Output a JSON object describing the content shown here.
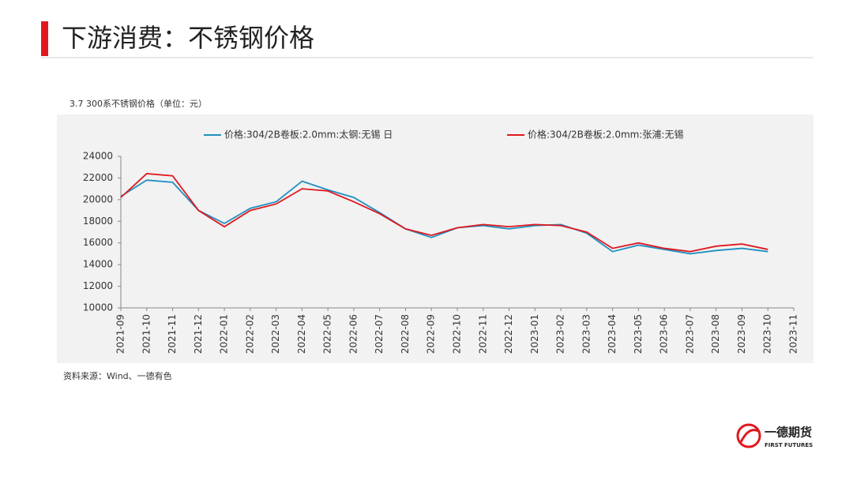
{
  "header": {
    "title": "下游消费：不锈钢价格"
  },
  "chart_data": {
    "type": "line",
    "title": "3.7 300系不锈钢价格（单位：元）",
    "x": [
      "2021-09",
      "2021-10",
      "2021-11",
      "2021-12",
      "2022-01",
      "2022-02",
      "2022-03",
      "2022-04",
      "2022-05",
      "2022-06",
      "2022-07",
      "2022-08",
      "2022-09",
      "2022-10",
      "2022-11",
      "2022-12",
      "2023-01",
      "2023-02",
      "2023-03",
      "2023-04",
      "2023-05",
      "2023-06",
      "2023-07",
      "2023-08",
      "2023-09",
      "2023-10"
    ],
    "series": [
      {
        "name": "价格:304/2B卷板:2.0mm:太钢:无锡 日",
        "color": "#1f8fc1",
        "values": [
          20300,
          21800,
          21600,
          19000,
          17800,
          19200,
          19800,
          21700,
          20900,
          20200,
          18800,
          17300,
          16500,
          17400,
          17600,
          17300,
          17600,
          17700,
          16900,
          15200,
          15800,
          15400,
          15000,
          15300,
          15500,
          15200
        ]
      },
      {
        "name": "价格:304/2B卷板:2.0mm:张浦:无锡",
        "color": "#e0181e",
        "values": [
          20200,
          22400,
          22200,
          19000,
          17500,
          19000,
          19600,
          21000,
          20800,
          19800,
          18700,
          17300,
          16700,
          17400,
          17700,
          17500,
          17700,
          17600,
          17000,
          15500,
          16000,
          15500,
          15200,
          15700,
          15900,
          15400
        ]
      }
    ],
    "ylim": [
      10000,
      24000
    ],
    "yticks": [
      10000,
      12000,
      14000,
      16000,
      18000,
      20000,
      22000,
      24000
    ],
    "xticks": [
      "2021-09",
      "2021-10",
      "2021-11",
      "2021-12",
      "2022-01",
      "2022-02",
      "2022-03",
      "2022-04",
      "2022-05",
      "2022-06",
      "2022-07",
      "2022-08",
      "2022-09",
      "2022-10",
      "2022-11",
      "2022-12",
      "2023-01",
      "2023-02",
      "2023-03",
      "2023-04",
      "2023-05",
      "2023-06",
      "2023-07",
      "2023-08",
      "2023-09",
      "2023-10",
      "2023-11"
    ],
    "legend": "top"
  },
  "source": "资料来源：Wind、一德有色",
  "logo": {
    "name": "一德期货",
    "subtitle": "FIRST FUTURES"
  }
}
